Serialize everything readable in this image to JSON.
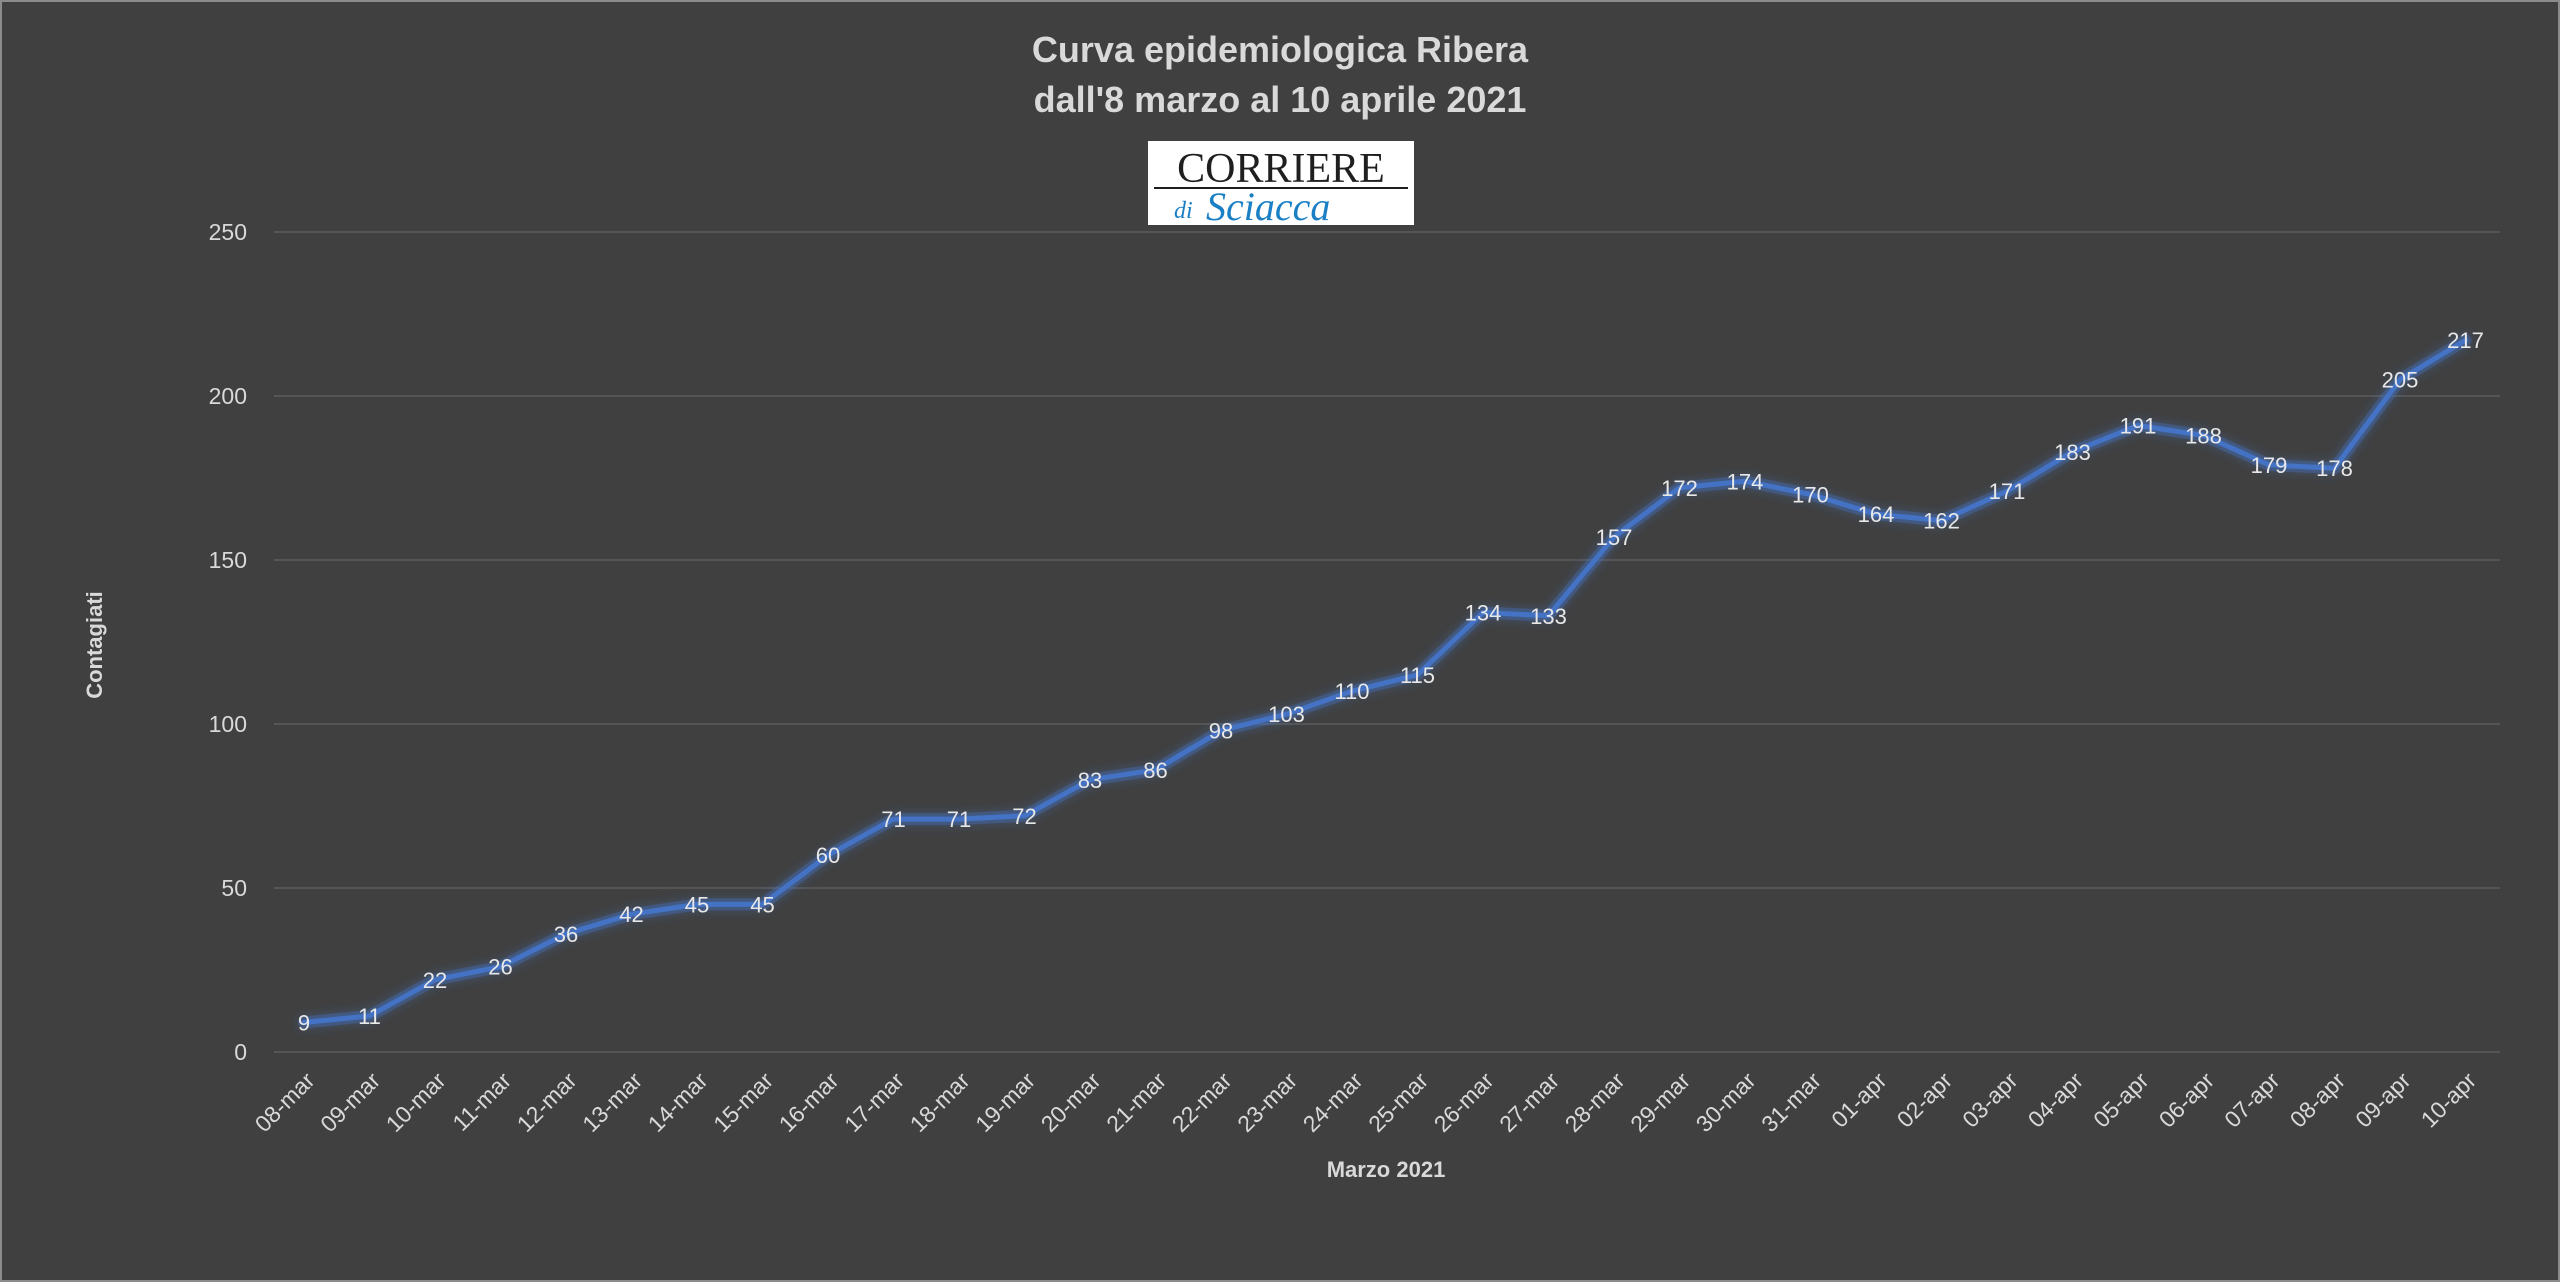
{
  "chart_data": {
    "type": "line",
    "title": "Curva epidemiologica Ribera",
    "subtitle": "dall'8 marzo al 10  aprile 2021",
    "xlabel": "Marzo 2021",
    "ylabel": "Contagiati",
    "ylim": [
      0,
      250
    ],
    "yticks": [
      0,
      50,
      100,
      150,
      200,
      250
    ],
    "grid": true,
    "categories": [
      "08-mar",
      "09-mar",
      "10-mar",
      "11-mar",
      "12-mar",
      "13-mar",
      "14-mar",
      "15-mar",
      "16-mar",
      "17-mar",
      "18-mar",
      "19-mar",
      "20-mar",
      "21-mar",
      "22-mar",
      "23-mar",
      "24-mar",
      "25-mar",
      "26-mar",
      "27-mar",
      "28-mar",
      "29-mar",
      "30-mar",
      "31-mar",
      "01-apr",
      "02-apr",
      "03-apr",
      "04-apr",
      "05-apr",
      "06-apr",
      "07-apr",
      "08-apr",
      "09-apr",
      "10-apr"
    ],
    "series": [
      {
        "values": [
          9,
          11,
          22,
          26,
          36,
          42,
          45,
          45,
          60,
          71,
          71,
          72,
          83,
          86,
          98,
          103,
          110,
          115,
          134,
          133,
          157,
          172,
          174,
          170,
          164,
          162,
          171,
          183,
          191,
          188,
          179,
          178,
          205,
          217
        ],
        "color": "#4472c4"
      }
    ]
  },
  "logo": {
    "top_text": "CORRIERE",
    "bottom_text_di": "di",
    "bottom_text_main": "Sciacca",
    "text_color": "#1f1f1f",
    "accent_color": "#1a7fc4"
  }
}
